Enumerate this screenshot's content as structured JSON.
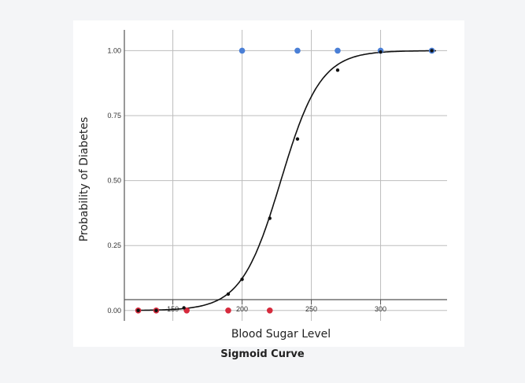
{
  "caption": "Sigmoid Curve",
  "colors": {
    "background": "#f4f5f7",
    "panel": "#ffffff",
    "grid": "#bdbdbd",
    "curve": "#111111",
    "positive_point": "#4a7fd6",
    "negative_point": "#d62a3c",
    "fitted_point": "#111111"
  },
  "chart_data": {
    "type": "scatter",
    "xlabel": "Blood Sugar Level",
    "ylabel": "Probability of Diabetes",
    "xlim": [
      115,
      348
    ],
    "ylim": [
      -0.04,
      1.08
    ],
    "xticks": [
      150,
      200,
      250,
      300
    ],
    "yticks": [
      0.0,
      0.25,
      0.5,
      0.75,
      1.0
    ],
    "ytick_labels": [
      "0.00",
      "0.25",
      "0.50",
      "0.75",
      "1.00"
    ],
    "xtick_labels": [
      "150",
      "200",
      "250",
      "300"
    ],
    "grid": true,
    "series": [
      {
        "role": "positive",
        "color": "#4a7fd6",
        "points": [
          [
            200,
            1
          ],
          [
            240,
            1
          ],
          [
            269,
            1
          ],
          [
            300,
            1
          ],
          [
            337,
            1
          ]
        ]
      },
      {
        "role": "negative",
        "color": "#d62a3c",
        "points": [
          [
            125,
            0
          ],
          [
            138,
            0
          ],
          [
            160,
            0
          ],
          [
            190,
            0
          ],
          [
            220,
            0
          ]
        ]
      },
      {
        "role": "fitted",
        "color": "#111111",
        "points": [
          [
            125,
            0.0
          ],
          [
            138,
            0.0
          ],
          [
            158,
            0.01
          ],
          [
            190,
            0.063
          ],
          [
            200,
            0.12
          ],
          [
            220,
            0.355
          ],
          [
            240,
            0.66
          ],
          [
            269,
            0.925
          ],
          [
            300,
            0.995
          ],
          [
            337,
            1.0
          ]
        ]
      }
    ]
  }
}
